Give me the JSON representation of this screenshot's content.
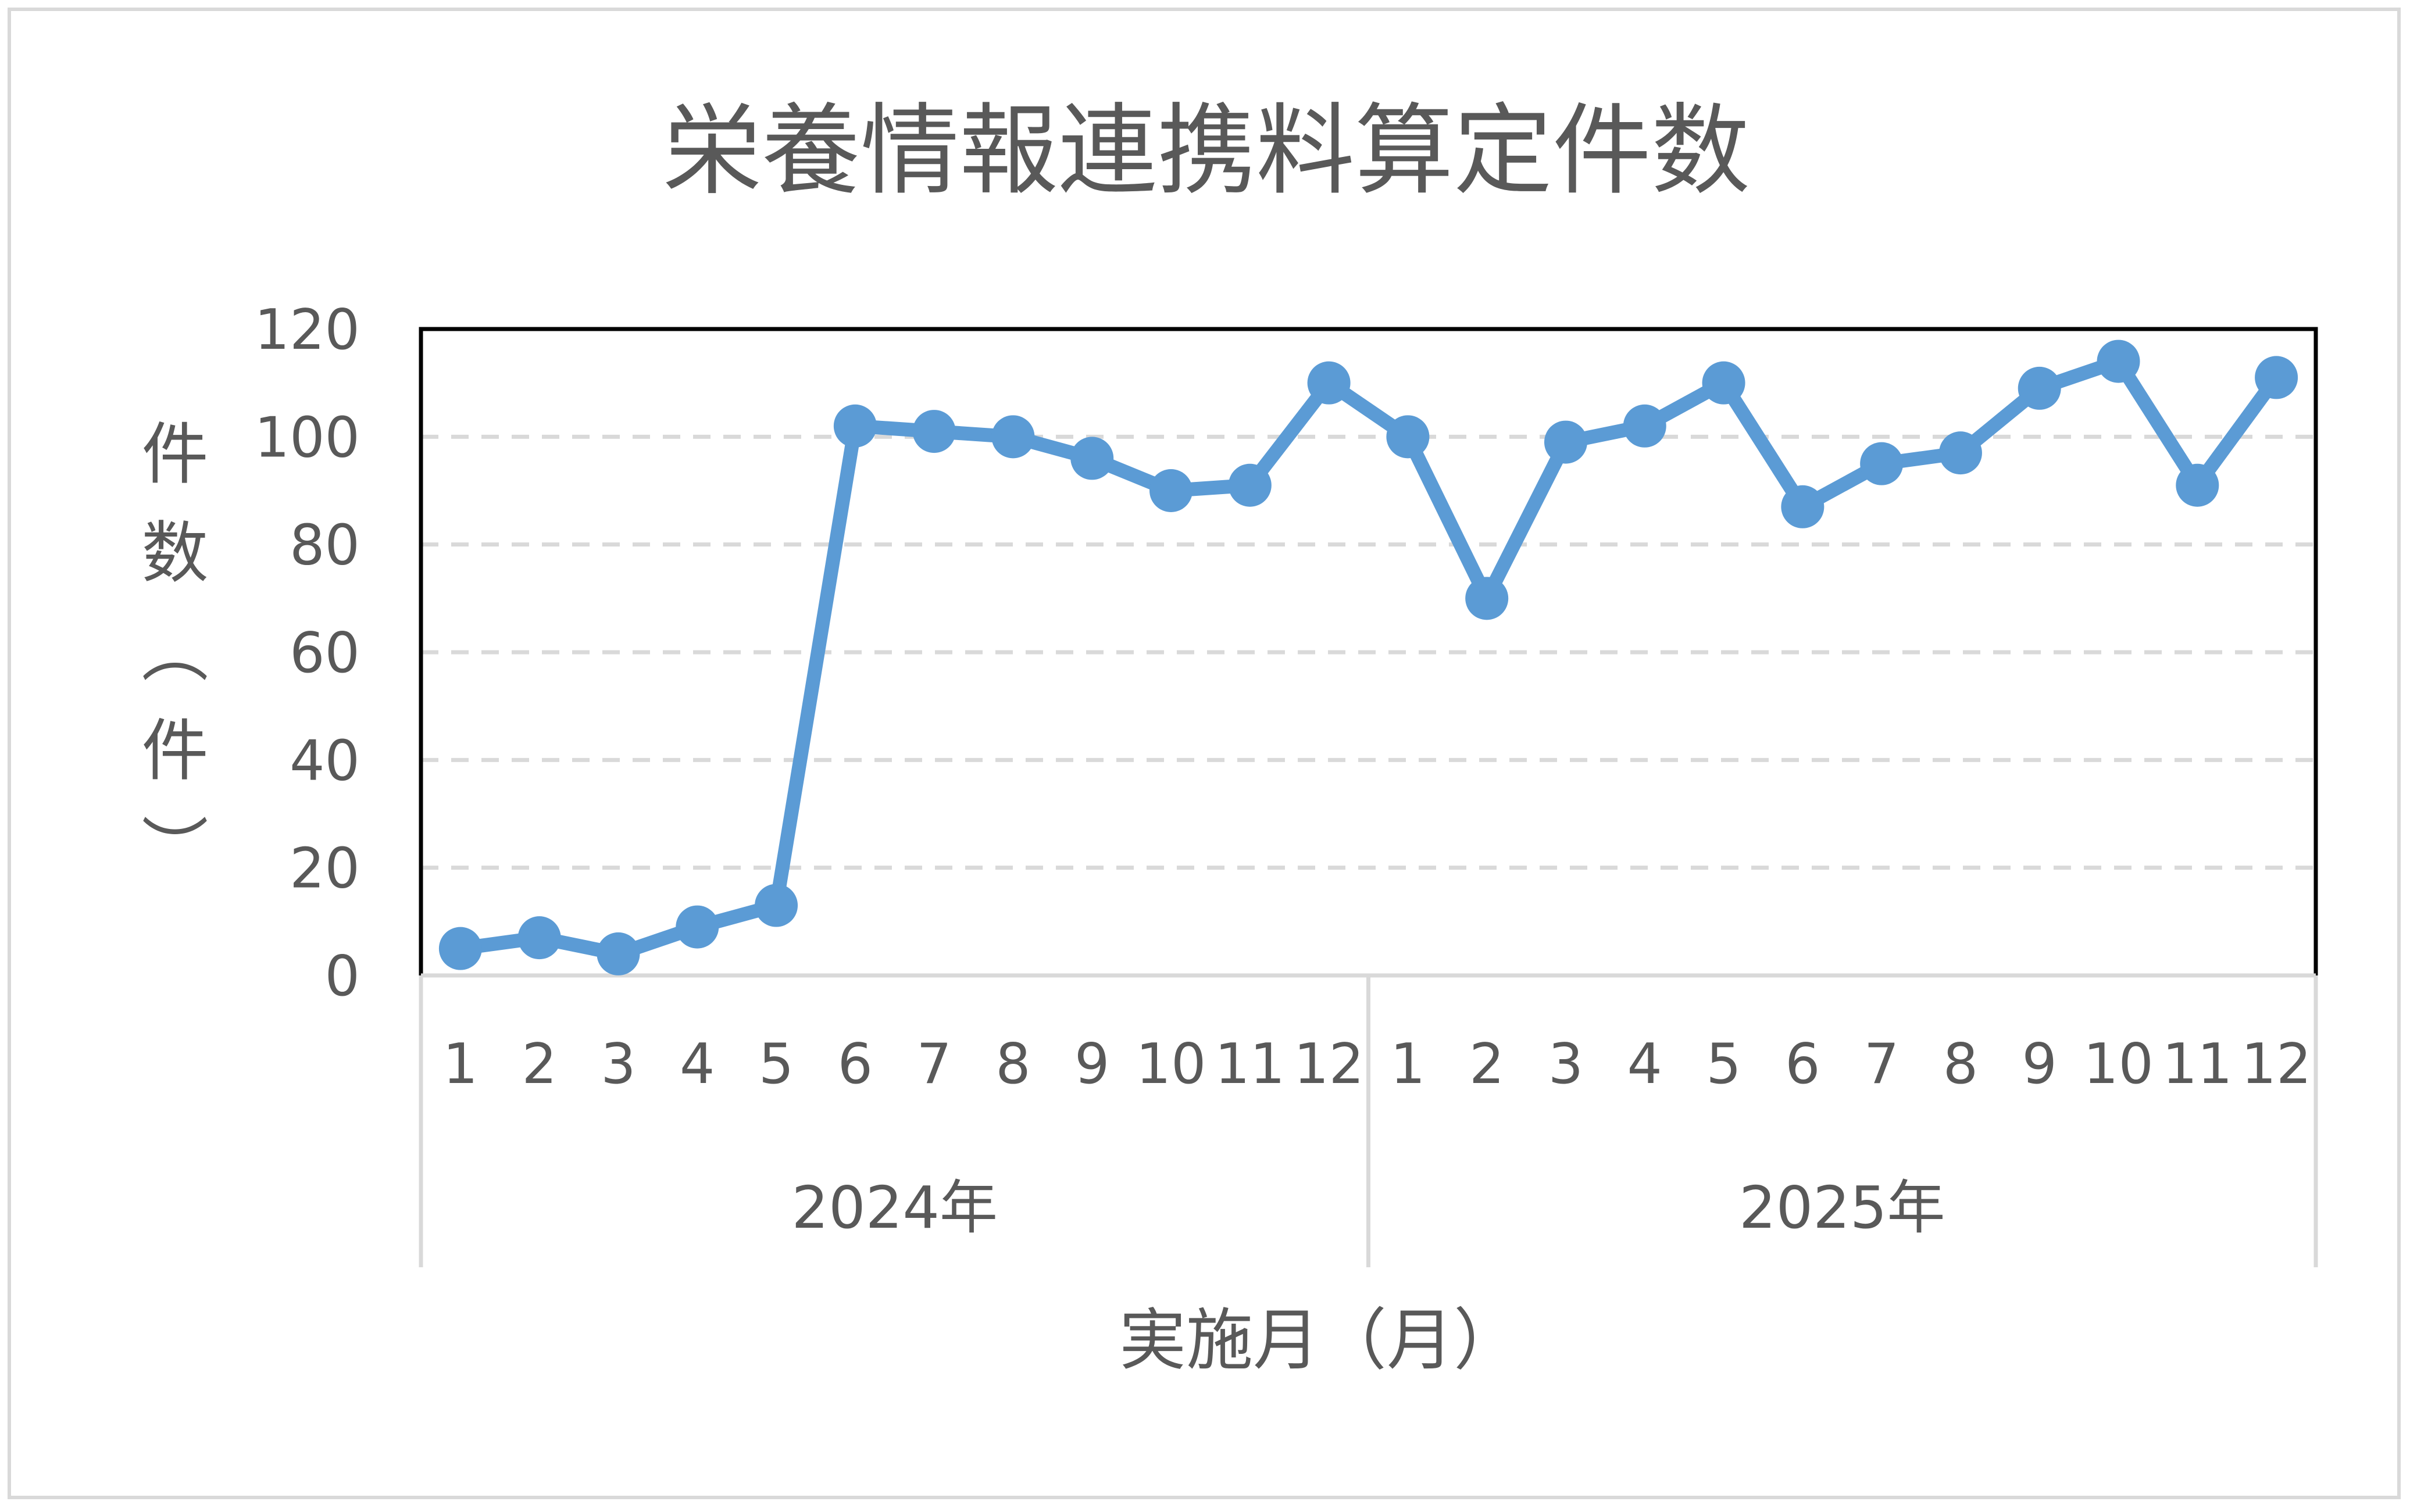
{
  "chart_data": {
    "type": "line",
    "title": "栄養情報連携料算定件数",
    "xlabel": "実施月（月）",
    "ylabel": "件数（件）",
    "ylim": [
      0,
      120
    ],
    "yticks": [
      0,
      20,
      40,
      60,
      80,
      100,
      120
    ],
    "grid": true,
    "grid_style": "dashed horizontal",
    "legend": "none",
    "groups": [
      {
        "label": "2024年",
        "categories": [
          "1",
          "2",
          "3",
          "4",
          "5",
          "6",
          "7",
          "8",
          "9",
          "10",
          "11",
          "12"
        ]
      },
      {
        "label": "2025年",
        "categories": [
          "1",
          "2",
          "3",
          "4",
          "5",
          "6",
          "7",
          "8",
          "9",
          "10",
          "11",
          "12"
        ]
      }
    ],
    "series": [
      {
        "values": [
          5,
          7,
          4,
          9,
          13,
          102,
          101,
          100,
          96,
          90,
          91,
          110,
          100,
          70,
          99,
          102,
          110,
          87,
          95,
          97,
          109,
          114,
          91,
          111
        ],
        "color": "#5b9bd5",
        "marker": "circle"
      }
    ]
  }
}
